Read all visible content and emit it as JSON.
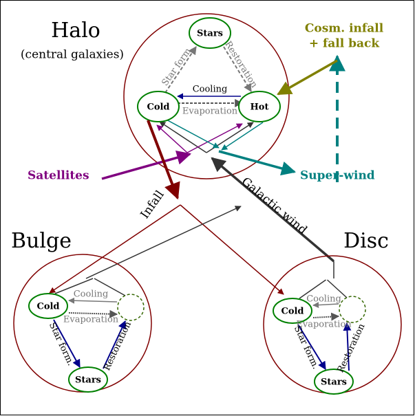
{
  "halo": {
    "title": "Halo",
    "subtitle": "(central galaxies)",
    "stars": "Stars",
    "cold": "Cold",
    "hot": "Hot",
    "star_form": "Star form.",
    "restoration": "Restoration",
    "cooling": "Cooling",
    "evaporation": "Evaporation"
  },
  "external": {
    "cosmic_infall": [
      "Cosm. infall",
      "+ fall back"
    ],
    "satellites": "Satellites",
    "super_wind": "Super-wind"
  },
  "flows": {
    "infall": "Infall",
    "galactic_wind": "Galactic wind"
  },
  "bulge": {
    "title": "Bulge",
    "cold": "Cold",
    "stars": "Stars",
    "cooling": "Cooling",
    "evaporation": "Evaporation",
    "star_form": "Star form.",
    "restoration": "Restoration"
  },
  "disc": {
    "title": "Disc",
    "cold": "Cold",
    "stars": "Stars",
    "cooling": "Cooling",
    "evaporation": "Evaporation",
    "star_form": "Star form.",
    "restoration": "Restoration"
  }
}
